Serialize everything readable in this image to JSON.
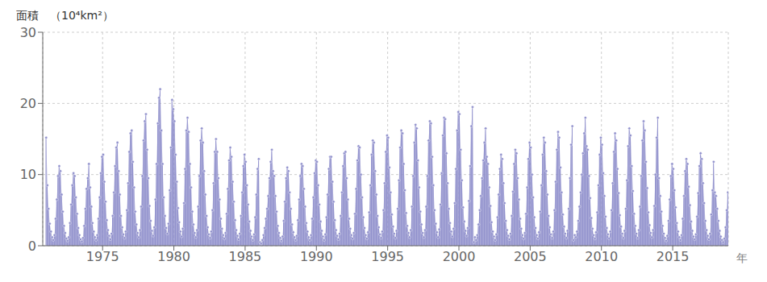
{
  "chart_data": {
    "type": "area",
    "ylabel": "面積　（10⁴km²）",
    "xlabel": "年",
    "color": "#9090cc",
    "marker": "circle",
    "grid": true,
    "xlim": [
      1970.8,
      2018.9
    ],
    "xticks": [
      1975,
      1980,
      1985,
      1990,
      1995,
      2000,
      2005,
      2010,
      2015
    ],
    "ylim": [
      0,
      30
    ],
    "yticks": [
      0,
      10,
      20,
      30
    ],
    "x": [
      1971.0417,
      1971.125,
      1971.2083,
      1971.2917,
      1971.375,
      1971.4583,
      1971.5417,
      1971.625,
      1971.7083,
      1971.7917,
      1971.875,
      1971.9583,
      1972.0417,
      1972.125,
      1972.2083,
      1972.2917,
      1972.375,
      1972.4583,
      1972.5417,
      1972.625,
      1972.7083,
      1972.7917,
      1972.875,
      1972.9583,
      1973.0417,
      1973.125,
      1973.2083,
      1973.2917,
      1973.375,
      1973.4583,
      1973.5417,
      1973.625,
      1973.7083,
      1973.7917,
      1973.875,
      1973.9583,
      1974.0417,
      1974.125,
      1974.2083,
      1974.2917,
      1974.375,
      1974.4583,
      1974.5417,
      1974.625,
      1974.7083,
      1974.7917,
      1974.875,
      1974.9583,
      1975.0417,
      1975.125,
      1975.2083,
      1975.2917,
      1975.375,
      1975.4583,
      1975.5417,
      1975.625,
      1975.7083,
      1975.7917,
      1975.875,
      1975.9583,
      1976.0417,
      1976.125,
      1976.2083,
      1976.2917,
      1976.375,
      1976.4583,
      1976.5417,
      1976.625,
      1976.7083,
      1976.7917,
      1976.875,
      1976.9583,
      1977.0417,
      1977.125,
      1977.2083,
      1977.2917,
      1977.375,
      1977.4583,
      1977.5417,
      1977.625,
      1977.7083,
      1977.7917,
      1977.875,
      1977.9583,
      1978.0417,
      1978.125,
      1978.2083,
      1978.2917,
      1978.375,
      1978.4583,
      1978.5417,
      1978.625,
      1978.7083,
      1978.7917,
      1978.875,
      1978.9583,
      1979.0417,
      1979.125,
      1979.2083,
      1979.2917,
      1979.375,
      1979.4583,
      1979.5417,
      1979.625,
      1979.7083,
      1979.7917,
      1979.875,
      1979.9583,
      1980.0417,
      1980.125,
      1980.2083,
      1980.2917,
      1980.375,
      1980.4583,
      1980.5417,
      1980.625,
      1980.7083,
      1980.7917,
      1980.875,
      1980.9583,
      1981.0417,
      1981.125,
      1981.2083,
      1981.2917,
      1981.375,
      1981.4583,
      1981.5417,
      1981.625,
      1981.7083,
      1981.7917,
      1981.875,
      1981.9583,
      1982.0417,
      1982.125,
      1982.2083,
      1982.2917,
      1982.375,
      1982.4583,
      1982.5417,
      1982.625,
      1982.7083,
      1982.7917,
      1982.875,
      1982.9583,
      1983.0417,
      1983.125,
      1983.2083,
      1983.2917,
      1983.375,
      1983.4583,
      1983.5417,
      1983.625,
      1983.7083,
      1983.7917,
      1983.875,
      1983.9583,
      1984.0417,
      1984.125,
      1984.2083,
      1984.2917,
      1984.375,
      1984.4583,
      1984.5417,
      1984.625,
      1984.7083,
      1984.7917,
      1984.875,
      1984.9583,
      1985.0417,
      1985.125,
      1985.2083,
      1985.2917,
      1985.375,
      1985.4583,
      1985.5417,
      1985.625,
      1985.7083,
      1985.7917,
      1985.875,
      1985.9583,
      1986.0417,
      1986.125,
      1986.2083,
      1986.2917,
      1986.375,
      1986.4583,
      1986.5417,
      1986.625,
      1986.7083,
      1986.7917,
      1986.875,
      1986.9583,
      1987.0417,
      1987.125,
      1987.2083,
      1987.2917,
      1987.375,
      1987.4583,
      1987.5417,
      1987.625,
      1987.7083,
      1987.7917,
      1987.875,
      1987.9583,
      1988.0417,
      1988.125,
      1988.2083,
      1988.2917,
      1988.375,
      1988.4583,
      1988.5417,
      1988.625,
      1988.7083,
      1988.7917,
      1988.875,
      1988.9583,
      1989.0417,
      1989.125,
      1989.2083,
      1989.2917,
      1989.375,
      1989.4583,
      1989.5417,
      1989.625,
      1989.7083,
      1989.7917,
      1989.875,
      1989.9583,
      1990.0417,
      1990.125,
      1990.2083,
      1990.2917,
      1990.375,
      1990.4583,
      1990.5417,
      1990.625,
      1990.7083,
      1990.7917,
      1990.875,
      1990.9583,
      1991.0417,
      1991.125,
      1991.2083,
      1991.2917,
      1991.375,
      1991.4583,
      1991.5417,
      1991.625,
      1991.7083,
      1991.7917,
      1991.875,
      1991.9583,
      1992.0417,
      1992.125,
      1992.2083,
      1992.2917,
      1992.375,
      1992.4583,
      1992.5417,
      1992.625,
      1992.7083,
      1992.7917,
      1992.875,
      1992.9583,
      1993.0417,
      1993.125,
      1993.2083,
      1993.2917,
      1993.375,
      1993.4583,
      1993.5417,
      1993.625,
      1993.7083,
      1993.7917,
      1993.875,
      1993.9583,
      1994.0417,
      1994.125,
      1994.2083,
      1994.2917,
      1994.375,
      1994.4583,
      1994.5417,
      1994.625,
      1994.7083,
      1994.7917,
      1994.875,
      1994.9583,
      1995.0417,
      1995.125,
      1995.2083,
      1995.2917,
      1995.375,
      1995.4583,
      1995.5417,
      1995.625,
      1995.7083,
      1995.7917,
      1995.875,
      1995.9583,
      1996.0417,
      1996.125,
      1996.2083,
      1996.2917,
      1996.375,
      1996.4583,
      1996.5417,
      1996.625,
      1996.7083,
      1996.7917,
      1996.875,
      1996.9583,
      1997.0417,
      1997.125,
      1997.2083,
      1997.2917,
      1997.375,
      1997.4583,
      1997.5417,
      1997.625,
      1997.7083,
      1997.7917,
      1997.875,
      1997.9583,
      1998.0417,
      1998.125,
      1998.2083,
      1998.2917,
      1998.375,
      1998.4583,
      1998.5417,
      1998.625,
      1998.7083,
      1998.7917,
      1998.875,
      1998.9583,
      1999.0417,
      1999.125,
      1999.2083,
      1999.2917,
      1999.375,
      1999.4583,
      1999.5417,
      1999.625,
      1999.7083,
      1999.7917,
      1999.875,
      1999.9583,
      2000.0417,
      2000.125,
      2000.2083,
      2000.2917,
      2000.375,
      2000.4583,
      2000.5417,
      2000.625,
      2000.7083,
      2000.7917,
      2000.875,
      2000.9583,
      2001.0417,
      2001.125,
      2001.2083,
      2001.2917,
      2001.375,
      2001.4583,
      2001.5417,
      2001.625,
      2001.7083,
      2001.7917,
      2001.875,
      2001.9583,
      2002.0417,
      2002.125,
      2002.2083,
      2002.2917,
      2002.375,
      2002.4583,
      2002.5417,
      2002.625,
      2002.7083,
      2002.7917,
      2002.875,
      2002.9583,
      2003.0417,
      2003.125,
      2003.2083,
      2003.2917,
      2003.375,
      2003.4583,
      2003.5417,
      2003.625,
      2003.7083,
      2003.7917,
      2003.875,
      2003.9583,
      2004.0417,
      2004.125,
      2004.2083,
      2004.2917,
      2004.375,
      2004.4583,
      2004.5417,
      2004.625,
      2004.7083,
      2004.7917,
      2004.875,
      2004.9583,
      2005.0417,
      2005.125,
      2005.2083,
      2005.2917,
      2005.375,
      2005.4583,
      2005.5417,
      2005.625,
      2005.7083,
      2005.7917,
      2005.875,
      2005.9583,
      2006.0417,
      2006.125,
      2006.2083,
      2006.2917,
      2006.375,
      2006.4583,
      2006.5417,
      2006.625,
      2006.7083,
      2006.7917,
      2006.875,
      2006.9583,
      2007.0417,
      2007.125,
      2007.2083,
      2007.2917,
      2007.375,
      2007.4583,
      2007.5417,
      2007.625,
      2007.7083,
      2007.7917,
      2007.875,
      2007.9583,
      2008.0417,
      2008.125,
      2008.2083,
      2008.2917,
      2008.375,
      2008.4583,
      2008.5417,
      2008.625,
      2008.7083,
      2008.7917,
      2008.875,
      2008.9583,
      2009.0417,
      2009.125,
      2009.2083,
      2009.2917,
      2009.375,
      2009.4583,
      2009.5417,
      2009.625,
      2009.7083,
      2009.7917,
      2009.875,
      2009.9583,
      2010.0417,
      2010.125,
      2010.2083,
      2010.2917,
      2010.375,
      2010.4583,
      2010.5417,
      2010.625,
      2010.7083,
      2010.7917,
      2010.875,
      2010.9583,
      2011.0417,
      2011.125,
      2011.2083,
      2011.2917,
      2011.375,
      2011.4583,
      2011.5417,
      2011.625,
      2011.7083,
      2011.7917,
      2011.875,
      2011.9583,
      2012.0417,
      2012.125,
      2012.2083,
      2012.2917,
      2012.375,
      2012.4583,
      2012.5417,
      2012.625,
      2012.7083,
      2012.7917,
      2012.875,
      2012.9583,
      2013.0417,
      2013.125,
      2013.2083,
      2013.2917,
      2013.375,
      2013.4583,
      2013.5417,
      2013.625,
      2013.7083,
      2013.7917,
      2013.875,
      2013.9583,
      2014.0417,
      2014.125,
      2014.2083,
      2014.2917,
      2014.375,
      2014.4583,
      2014.5417,
      2014.625,
      2014.7083,
      2014.7917,
      2014.875,
      2014.9583,
      2015.0417,
      2015.125,
      2015.2083,
      2015.2917,
      2015.375,
      2015.4583,
      2015.5417,
      2015.625,
      2015.7083,
      2015.7917,
      2015.875,
      2015.9583,
      2016.0417,
      2016.125,
      2016.2083,
      2016.2917,
      2016.375,
      2016.4583,
      2016.5417,
      2016.625,
      2016.7083,
      2016.7917,
      2016.875,
      2016.9583,
      2017.0417,
      2017.125,
      2017.2083,
      2017.2917,
      2017.375,
      2017.4583,
      2017.5417,
      2017.625,
      2017.7083,
      2017.7917,
      2017.875,
      2017.9583,
      2018.0417,
      2018.125,
      2018.2083,
      2018.2917,
      2018.375,
      2018.4583,
      2018.5417,
      2018.625,
      2018.7083,
      2018.7917,
      2018.875,
      2018.9583
    ],
    "values": [
      15.2,
      8.5,
      5.2,
      3.1,
      2.0,
      1.2,
      0.8,
      1.5,
      3.8,
      6.5,
      9.8,
      11.2,
      10.5,
      7.2,
      4.8,
      2.8,
      1.8,
      1.0,
      0.7,
      1.2,
      3.2,
      5.8,
      8.5,
      10.2,
      9.8,
      6.8,
      4.5,
      2.5,
      1.5,
      0.9,
      0.6,
      1.1,
      2.8,
      5.2,
      8.0,
      9.5,
      11.5,
      8.2,
      5.5,
      3.2,
      2.0,
      1.2,
      0.8,
      1.5,
      3.8,
      6.8,
      10.2,
      12.5,
      12.8,
      9.0,
      6.2,
      3.6,
      2.2,
      1.4,
      0.9,
      1.7,
      4.2,
      7.5,
      11.2,
      13.8,
      14.5,
      10.5,
      7.2,
      4.2,
      2.6,
      1.6,
      1.1,
      2.0,
      5.0,
      8.8,
      13.2,
      15.8,
      16.2,
      11.8,
      8.2,
      4.8,
      3.0,
      1.8,
      1.2,
      2.2,
      5.5,
      9.8,
      14.8,
      17.5,
      18.5,
      13.5,
      9.5,
      5.6,
      3.5,
      2.1,
      1.4,
      2.6,
      6.5,
      11.5,
      17.2,
      20.8,
      22.0,
      16.2,
      11.5,
      6.8,
      4.2,
      2.5,
      1.7,
      3.1,
      7.8,
      13.8,
      20.5,
      19.2,
      17.5,
      12.8,
      9.0,
      5.3,
      3.3,
      2.0,
      1.3,
      2.4,
      6.0,
      10.8,
      16.2,
      18.0,
      16.0,
      11.5,
      8.2,
      4.8,
      3.0,
      1.8,
      1.2,
      2.2,
      5.5,
      9.8,
      14.8,
      16.5,
      14.5,
      10.5,
      7.2,
      4.2,
      2.6,
      1.6,
      1.1,
      2.0,
      5.0,
      8.8,
      13.2,
      15.0,
      13.2,
      9.5,
      6.5,
      3.8,
      2.4,
      1.5,
      1.0,
      1.8,
      4.5,
      8.0,
      12.0,
      13.8,
      12.5,
      9.0,
      6.2,
      3.6,
      2.2,
      1.4,
      0.9,
      1.7,
      4.2,
      7.5,
      11.2,
      12.8,
      11.8,
      8.5,
      5.8,
      3.4,
      2.1,
      1.3,
      0.8,
      1.6,
      4.0,
      7.2,
      10.8,
      12.2,
      0.5,
      0.3,
      0.8,
      1.5,
      2.5,
      3.8,
      5.2,
      7.0,
      9.5,
      11.8,
      13.5,
      10.5,
      9.8,
      7.0,
      4.8,
      2.8,
      1.8,
      1.1,
      0.7,
      1.3,
      3.5,
      6.2,
      9.5,
      11.0,
      10.5,
      7.5,
      5.2,
      3.0,
      1.9,
      1.2,
      0.8,
      1.4,
      3.6,
      6.5,
      9.8,
      11.5,
      11.2,
      8.0,
      5.5,
      3.2,
      2.0,
      1.2,
      0.8,
      1.5,
      3.8,
      6.8,
      10.2,
      12.0,
      11.8,
      8.5,
      5.8,
      3.4,
      2.1,
      1.3,
      0.8,
      1.6,
      4.0,
      7.2,
      10.8,
      12.5,
      12.5,
      9.0,
      6.2,
      3.6,
      2.2,
      1.4,
      0.9,
      1.7,
      4.2,
      7.5,
      11.2,
      13.0,
      13.2,
      9.5,
      6.5,
      3.8,
      2.4,
      1.5,
      1.0,
      1.8,
      4.5,
      8.0,
      12.0,
      14.0,
      13.8,
      10.0,
      6.8,
      4.0,
      2.5,
      1.5,
      1.0,
      1.9,
      4.7,
      8.5,
      12.8,
      14.8,
      14.5,
      10.5,
      7.2,
      4.2,
      2.6,
      1.6,
      1.1,
      2.0,
      5.0,
      8.8,
      13.2,
      15.5,
      15.2,
      11.0,
      7.5,
      4.4,
      2.7,
      1.7,
      1.1,
      2.1,
      5.2,
      9.2,
      13.8,
      16.2,
      15.8,
      11.5,
      7.8,
      4.6,
      2.8,
      1.8,
      1.2,
      2.2,
      5.5,
      9.8,
      14.5,
      17.0,
      16.5,
      12.0,
      8.2,
      4.8,
      3.0,
      1.8,
      1.2,
      2.2,
      5.5,
      9.8,
      14.8,
      17.5,
      17.2,
      12.5,
      8.5,
      5.0,
      3.1,
      1.9,
      1.2,
      2.3,
      5.8,
      10.2,
      15.5,
      18.0,
      17.8,
      13.0,
      8.8,
      5.2,
      3.2,
      2.0,
      1.3,
      2.4,
      6.0,
      10.8,
      16.2,
      18.8,
      18.5,
      13.5,
      9.2,
      5.4,
      3.4,
      2.1,
      1.4,
      2.5,
      6.3,
      11.2,
      16.8,
      19.5,
      0.5,
      1.2,
      0.8,
      1.5,
      3.0,
      5.0,
      7.0,
      9.5,
      12.0,
      14.5,
      16.5,
      12.5,
      11.5,
      8.2,
      5.6,
      3.3,
      2.0,
      1.3,
      0.8,
      1.6,
      4.0,
      7.2,
      10.8,
      12.8,
      12.2,
      8.8,
      6.0,
      3.5,
      2.2,
      1.4,
      0.9,
      1.7,
      4.2,
      7.6,
      11.5,
      13.5,
      13.0,
      9.5,
      6.5,
      3.8,
      2.4,
      1.5,
      1.0,
      1.8,
      4.5,
      8.2,
      12.2,
      14.5,
      13.8,
      10.0,
      6.8,
      4.0,
      2.5,
      1.5,
      1.0,
      1.9,
      4.8,
      8.5,
      12.8,
      15.2,
      14.5,
      10.5,
      7.2,
      4.2,
      2.6,
      1.6,
      1.1,
      2.0,
      5.0,
      9.0,
      13.5,
      16.0,
      15.2,
      11.0,
      7.5,
      4.4,
      2.7,
      1.7,
      1.1,
      2.1,
      5.2,
      9.5,
      14.2,
      16.8,
      0.8,
      1.5,
      1.2,
      2.0,
      3.5,
      5.5,
      7.5,
      10.0,
      13.0,
      15.8,
      18.0,
      14.0,
      13.5,
      9.8,
      6.7,
      3.9,
      2.4,
      1.5,
      1.0,
      1.9,
      4.7,
      8.5,
      12.8,
      15.2,
      14.2,
      10.2,
      7.0,
      4.1,
      2.5,
      1.6,
      1.0,
      2.0,
      5.0,
      8.8,
      13.2,
      15.8,
      14.8,
      10.8,
      7.4,
      4.3,
      2.7,
      1.7,
      1.1,
      2.1,
      5.2,
      9.2,
      14.0,
      16.5,
      15.5,
      11.2,
      7.7,
      4.5,
      2.8,
      1.7,
      1.1,
      2.2,
      5.5,
      9.8,
      14.8,
      17.5,
      16.2,
      11.8,
      8.1,
      4.7,
      2.9,
      1.8,
      1.2,
      2.2,
      5.6,
      10.0,
      15.2,
      18.0,
      9.5,
      7.0,
      4.8,
      2.8,
      1.7,
      1.1,
      0.7,
      1.4,
      3.5,
      6.5,
      9.8,
      11.5,
      10.8,
      7.8,
      5.4,
      3.2,
      2.0,
      1.2,
      0.8,
      1.5,
      3.8,
      7.0,
      10.5,
      12.2,
      11.5,
      8.3,
      5.7,
      3.4,
      2.1,
      1.3,
      0.9,
      1.6,
      4.1,
      7.4,
      11.2,
      13.0,
      12.2,
      8.8,
      6.0,
      3.5,
      2.2,
      1.4,
      0.9,
      1.7,
      4.4,
      7.8,
      11.8,
      7.5,
      7.0,
      5.2,
      3.5,
      2.1,
      1.3,
      0.8,
      0.5,
      1.0,
      2.6,
      5.0,
      7.5,
      8.8
    ]
  }
}
